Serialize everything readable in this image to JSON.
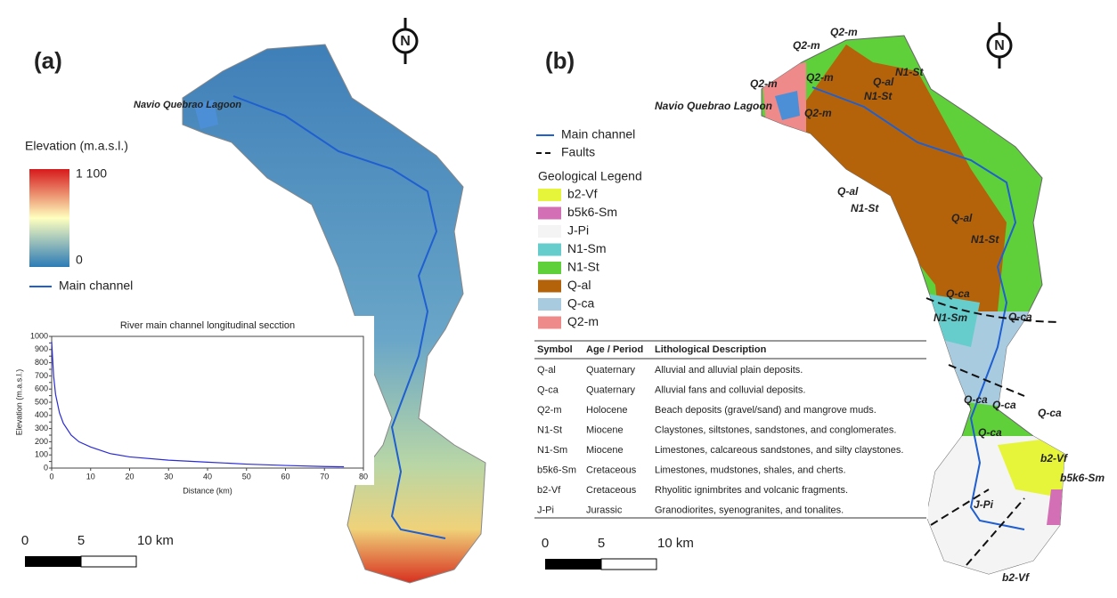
{
  "panel_a": {
    "label": "(a)",
    "north": "N",
    "lagoon_label": "Navio Quebrao Lagoon",
    "legend": {
      "title": "Elevation (m.a.s.l.)",
      "max": "1 100",
      "min": "0",
      "main_channel": "Main channel"
    },
    "scale": [
      "0",
      "5",
      "10 km"
    ]
  },
  "chart_data": {
    "type": "line",
    "title": "River main channel longitudinal secction",
    "x_label": "Distance (km)",
    "y_label": "Elevation (m.a.s.l.)",
    "x": [
      0,
      0.5,
      1,
      2,
      3,
      5,
      7,
      10,
      15,
      20,
      30,
      40,
      50,
      60,
      70,
      75
    ],
    "values": [
      960,
      700,
      560,
      420,
      340,
      250,
      200,
      160,
      110,
      85,
      60,
      45,
      30,
      20,
      12,
      10
    ],
    "color": "#2b2bd6",
    "xlim": [
      0,
      80
    ],
    "xticks": [
      0,
      10,
      20,
      30,
      40,
      50,
      60,
      70,
      80
    ],
    "ylim": [
      0,
      1000
    ],
    "yticks": [
      0,
      50,
      100,
      150,
      200,
      250,
      300,
      350,
      400,
      450,
      500,
      550,
      600,
      650,
      700,
      750,
      800,
      850,
      900,
      950,
      1000
    ]
  },
  "panel_b": {
    "label": "(b)",
    "north": "N",
    "lagoon_label": "Navio Quebrao Lagoon",
    "lines": [
      "Main channel",
      "Faults"
    ],
    "legend_title": "Geological Legend",
    "units": [
      {
        "name": "b2-Vf",
        "color": "#e6f53a"
      },
      {
        "name": "b5k6-Sm",
        "color": "#d36fb4"
      },
      {
        "name": "J-Pi",
        "color": "#f4f4f4"
      },
      {
        "name": "N1-Sm",
        "color": "#66cccc"
      },
      {
        "name": "N1-St",
        "color": "#5fd03a"
      },
      {
        "name": "Q-al",
        "color": "#b5630b"
      },
      {
        "name": "Q-ca",
        "color": "#a9cbe0"
      },
      {
        "name": "Q2-m",
        "color": "#ee8a8a"
      }
    ],
    "map_labels": [
      "Q2-m",
      "Q2-m",
      "Q2-m",
      "Q2-m",
      "Q2-m",
      "N1-St",
      "Q-al",
      "N1-St",
      "Q-al",
      "N1-St",
      "Q-al",
      "N1-St",
      "Q-ca",
      "N1-Sm",
      "Q-ca",
      "Q-ca",
      "Q-ca",
      "Q-ca",
      "Q-ca",
      "b2-Vf",
      "b5k6-Sm",
      "J-Pi",
      "b2-Vf"
    ],
    "scale": [
      "0",
      "5",
      "10 km"
    ]
  },
  "table": {
    "header": [
      "Symbol",
      "Age / Period",
      "Lithological Description"
    ],
    "rows": [
      [
        "Q-al",
        "Quaternary",
        "Alluvial and alluvial plain deposits."
      ],
      [
        "Q-ca",
        "Quaternary",
        "Alluvial fans and colluvial deposits."
      ],
      [
        "Q2-m",
        "Holocene",
        "Beach deposits (gravel/sand) and mangrove muds."
      ],
      [
        "N1-St",
        "Miocene",
        "Claystones, siltstones, sandstones, and conglomerates."
      ],
      [
        "N1-Sm",
        "Miocene",
        "Limestones, calcareous sandstones, and silty claystones."
      ],
      [
        "b5k6-Sm",
        "Cretaceous",
        "Limestones, mudstones, shales, and cherts."
      ],
      [
        "b2-Vf",
        "Cretaceous",
        "Rhyolitic ignimbrites and volcanic fragments."
      ],
      [
        "J-Pi",
        "Jurassic",
        "Granodiorites, syenogranites, and tonalites."
      ]
    ]
  }
}
